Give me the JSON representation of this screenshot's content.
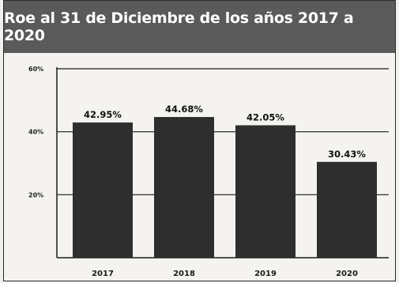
{
  "chart_data": {
    "type": "bar",
    "title": "Roe al 31 de Diciembre de los años 2017 a 2020",
    "xlabel": "",
    "ylabel": "",
    "categories": [
      "2017",
      "2018",
      "2019",
      "2020"
    ],
    "values": [
      42.95,
      44.68,
      42.05,
      30.43
    ],
    "data_labels": [
      "42.95%",
      "44.68%",
      "42.05%",
      "30.43%"
    ],
    "ylim": [
      0,
      60
    ],
    "yticks": [
      20,
      40,
      60
    ],
    "ytick_labels": [
      "20%",
      "40%",
      "60%"
    ],
    "grid": true,
    "legend": "none",
    "colors": {
      "bar": "#2e2e2e",
      "title_bg": "#5a5a5a",
      "title_text": "#ffffff",
      "grid": "#1a1a1a"
    }
  }
}
